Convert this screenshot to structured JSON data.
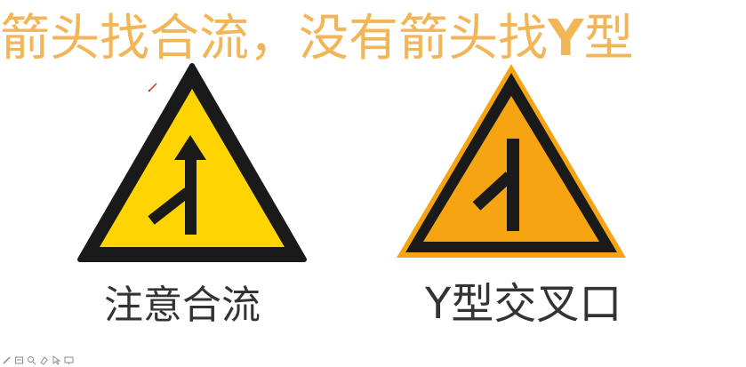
{
  "headline": {
    "part1": "箭头找合流，没有箭头找",
    "part2": "Y",
    "part3": "型"
  },
  "signs": [
    {
      "caption": "注意合流",
      "fill_color": "#ffd400",
      "icon": "merge-traffic-sign-icon"
    },
    {
      "caption": "Y型交叉口",
      "fill_color": "#f6a412",
      "icon": "y-junction-sign-icon"
    }
  ],
  "colors": {
    "headline": "#f2b557",
    "caption": "#333333",
    "sign_border": "#1a1a1a"
  },
  "toolbar": {
    "icons": [
      "pen-icon",
      "slide-icon",
      "magnify-icon",
      "eraser-icon",
      "pointer-icon",
      "screen-icon"
    ]
  }
}
